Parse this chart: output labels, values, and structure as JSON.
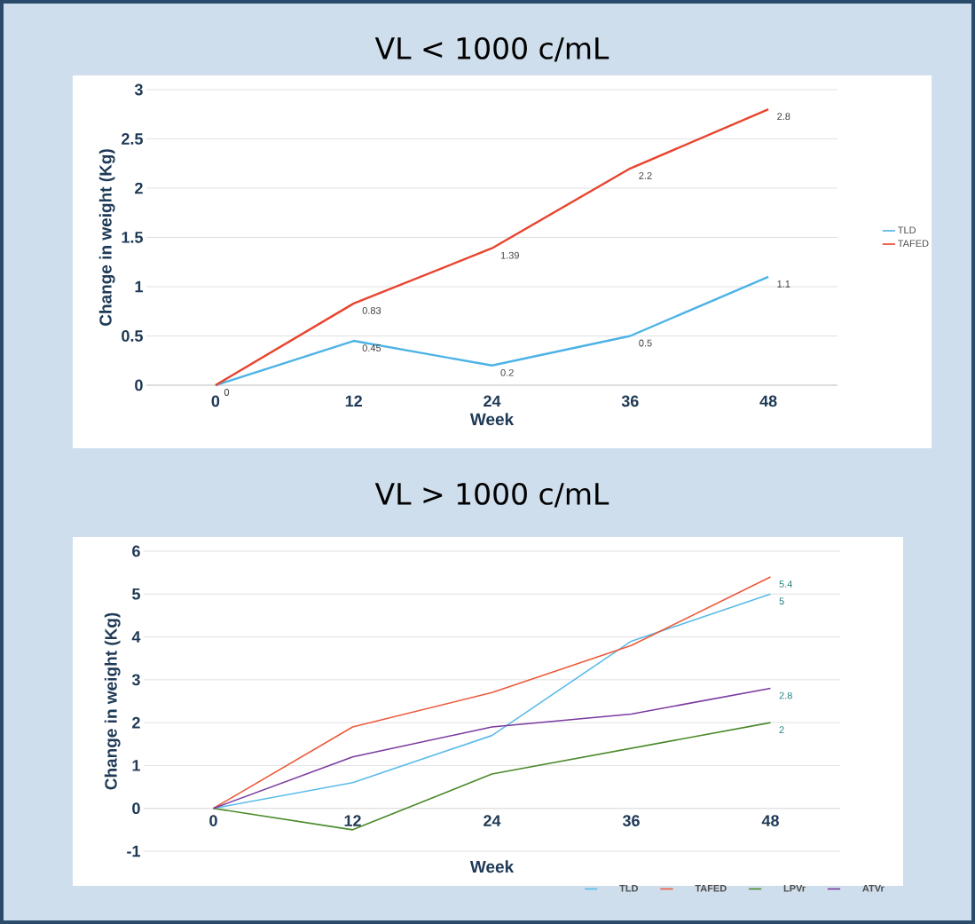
{
  "chart_data": [
    {
      "type": "line",
      "title": "VL < 1000 c/mL",
      "xlabel": "Week",
      "ylabel": "Change in weight (Kg)",
      "categories": [
        "0",
        "12",
        "24",
        "36",
        "48"
      ],
      "ylim": [
        0,
        3
      ],
      "yticks": [
        0,
        0.5,
        1,
        1.5,
        2,
        2.5,
        3
      ],
      "grid": "y",
      "legend": "right",
      "series": [
        {
          "name": "TLD",
          "color": "#4db3e6",
          "values": [
            0,
            0.45,
            0.2,
            0.5,
            1.1
          ],
          "value_labels": [
            "0",
            "0.45",
            "0.2",
            "0.5",
            "1.1"
          ]
        },
        {
          "name": "TAFED",
          "color": "#e8442e",
          "values": [
            0,
            0.83,
            1.39,
            2.2,
            2.8
          ],
          "value_labels": [
            null,
            "0.83",
            "1.39",
            "2.2",
            "2.8"
          ]
        }
      ]
    },
    {
      "type": "line",
      "title": "VL > 1000 c/mL",
      "xlabel": "Week",
      "ylabel": "Change in weight (Kg)",
      "categories": [
        "0",
        "12",
        "24",
        "36",
        "48"
      ],
      "ylim": [
        -1,
        6
      ],
      "yticks": [
        -1,
        0,
        1,
        2,
        3,
        4,
        5,
        6
      ],
      "grid": "y",
      "legend": "bottom right",
      "series": [
        {
          "name": "TLD",
          "color": "#5bbbe8",
          "values": [
            0,
            0.6,
            1.7,
            3.9,
            5
          ],
          "value_labels": [
            null,
            null,
            null,
            null,
            "5"
          ]
        },
        {
          "name": "TAFED",
          "color": "#ec5a3c",
          "values": [
            0,
            1.9,
            2.7,
            3.8,
            5.4
          ],
          "value_labels": [
            null,
            null,
            null,
            null,
            "5.4"
          ]
        },
        {
          "name": "LPVr",
          "color": "#4a8a2a",
          "values": [
            0,
            -0.5,
            0.8,
            1.4,
            2
          ],
          "value_labels": [
            null,
            null,
            null,
            null,
            "2"
          ]
        },
        {
          "name": "ATVr",
          "color": "#7a3aa0",
          "values": [
            0,
            1.2,
            1.9,
            2.2,
            2.8
          ],
          "value_labels": [
            null,
            null,
            null,
            null,
            "2.8"
          ]
        }
      ]
    }
  ]
}
